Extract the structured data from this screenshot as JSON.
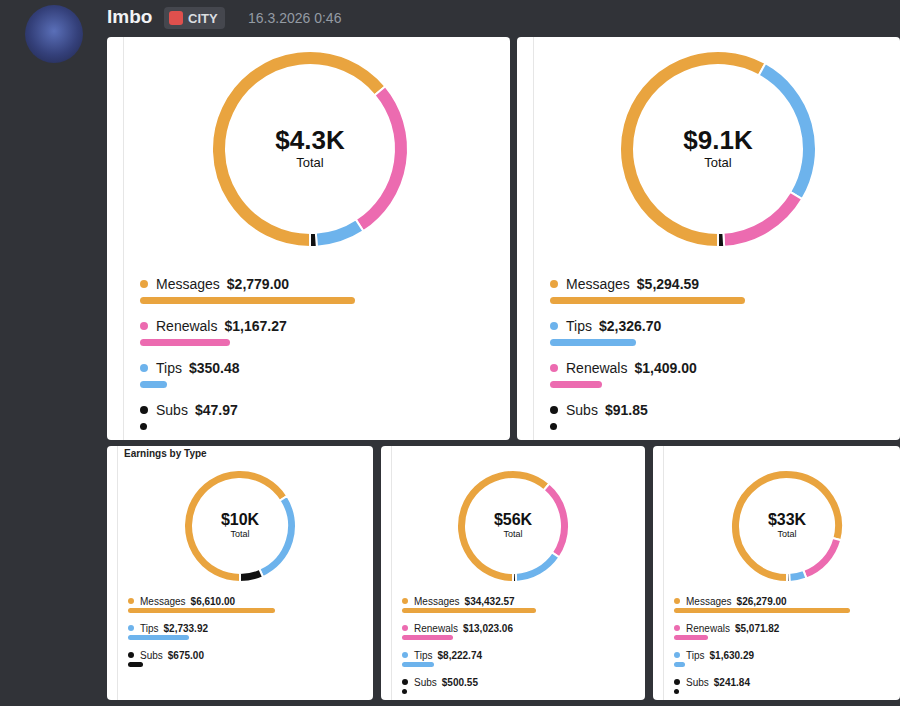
{
  "message": {
    "author": "Imbo",
    "tag": "CITY",
    "timestamp": "16.3.2026 0:46"
  },
  "chart_data": [
    {
      "type": "pie",
      "center_text": "$4.3K",
      "center_caption": "Total",
      "categories": [
        "Messages",
        "Renewals",
        "Tips",
        "Subs"
      ],
      "values": [
        2779.0,
        1167.27,
        350.48,
        47.97
      ],
      "value_labels": [
        "$2,779.00",
        "$1,167.27",
        "$350.48",
        "$47.97"
      ],
      "colors": [
        "#e9a43f",
        "#ec6bb0",
        "#6db3ec",
        "#111111"
      ],
      "legend": "bottom"
    },
    {
      "type": "pie",
      "center_text": "$9.1K",
      "center_caption": "Total",
      "categories": [
        "Messages",
        "Tips",
        "Renewals",
        "Subs"
      ],
      "values": [
        5294.59,
        2326.7,
        1409.0,
        91.85
      ],
      "value_labels": [
        "$5,294.59",
        "$2,326.70",
        "$1,409.00",
        "$91.85"
      ],
      "colors": [
        "#e9a43f",
        "#6db3ec",
        "#ec6bb0",
        "#111111"
      ],
      "legend": "bottom"
    },
    {
      "type": "pie",
      "title": "Earnings by Type",
      "center_text": "$10K",
      "center_caption": "Total",
      "categories": [
        "Messages",
        "Tips",
        "Subs"
      ],
      "values": [
        6610.0,
        2733.92,
        675.0
      ],
      "value_labels": [
        "$6,610.00",
        "$2,733.92",
        "$675.00"
      ],
      "colors": [
        "#e9a43f",
        "#6db3ec",
        "#111111"
      ],
      "legend": "bottom"
    },
    {
      "type": "pie",
      "center_text": "$56K",
      "center_caption": "Total",
      "categories": [
        "Messages",
        "Renewals",
        "Tips",
        "Subs"
      ],
      "values": [
        34432.57,
        13023.06,
        8222.74,
        500.55
      ],
      "value_labels": [
        "$34,432.57",
        "$13,023.06",
        "$8,222.74",
        "$500.55"
      ],
      "colors": [
        "#e9a43f",
        "#ec6bb0",
        "#6db3ec",
        "#111111"
      ],
      "legend": "bottom"
    },
    {
      "type": "pie",
      "center_text": "$33K",
      "center_caption": "Total",
      "categories": [
        "Messages",
        "Renewals",
        "Tips",
        "Subs"
      ],
      "values": [
        26279.0,
        5071.82,
        1630.29,
        241.84
      ],
      "value_labels": [
        "$26,279.00",
        "$5,071.82",
        "$1,630.29",
        "$241.84"
      ],
      "colors": [
        "#e9a43f",
        "#ec6bb0",
        "#6db3ec",
        "#111111"
      ],
      "legend": "bottom"
    }
  ]
}
